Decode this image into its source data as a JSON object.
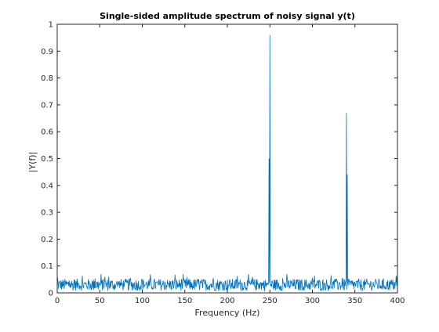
{
  "chart_data": {
    "type": "line",
    "title": "Single-sided amplitude spectrum of noisy signal y(t)",
    "xlabel": "Frequency (Hz)",
    "ylabel": "|Y(f)|",
    "xlim": [
      0,
      400
    ],
    "ylim": [
      0,
      1
    ],
    "xticks": [
      0,
      50,
      100,
      150,
      200,
      250,
      300,
      350,
      400
    ],
    "yticks": [
      0,
      0.1,
      0.2,
      0.3,
      0.4,
      0.5,
      0.6,
      0.7,
      0.8,
      0.9,
      1
    ],
    "xtick_labels": [
      "0",
      "50",
      "100",
      "150",
      "200",
      "250",
      "300",
      "350",
      "400"
    ],
    "ytick_labels": [
      "0",
      "0.1",
      "0.2",
      "0.3",
      "0.4",
      "0.5",
      "0.6",
      "0.7",
      "0.8",
      "0.9",
      "1"
    ],
    "grid": false,
    "line_color": "#0072BD",
    "series": [
      {
        "noise_floor": 0.03,
        "noise_max": 0.07,
        "peaks": [
          {
            "x": 249,
            "y": 0.5
          },
          {
            "x": 250,
            "y": 0.96
          },
          {
            "x": 340,
            "y": 0.67
          },
          {
            "x": 341,
            "y": 0.44
          }
        ]
      }
    ]
  }
}
